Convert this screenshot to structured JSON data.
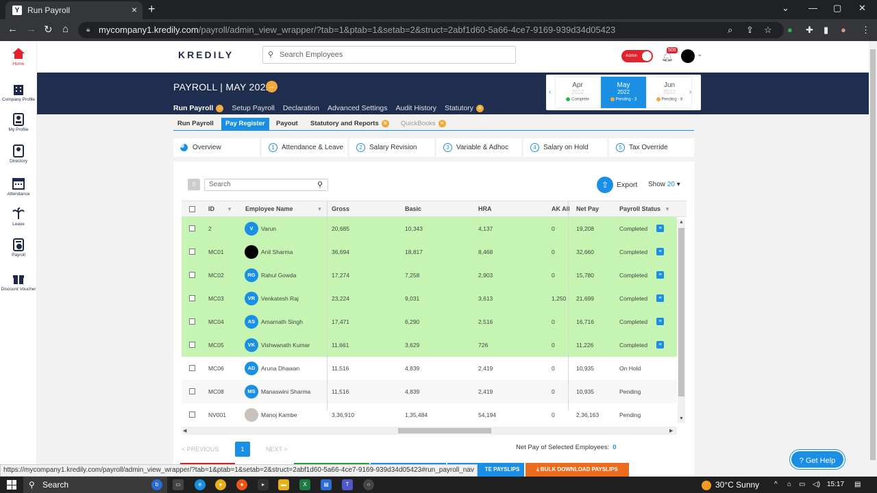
{
  "browser": {
    "tab_title": "Run Payroll",
    "url_host": "mycompany1.kredily.com",
    "url_path": "/payroll/admin_view_wrapper/?tab=1&ptab=1&setab=2&struct=2abf1d60-5a66-4ce7-9169-939d34d05423",
    "status_url": "https://mycompany1.kredily.com/payroll/admin_view_wrapper/?tab=1&ptab=1&setab=2&struct=2abf1d60-5a66-4ce7-9169-939d34d05423#run_payroll_nav"
  },
  "header": {
    "logo": "KREDILY",
    "search_placeholder": "Search Employees",
    "admin_label": "Admin",
    "notif_count": "506"
  },
  "sidebar": {
    "items": [
      {
        "label": "Home",
        "icon": "home-icon"
      },
      {
        "label": "Company Profile",
        "icon": "building-icon"
      },
      {
        "label": "My Profile",
        "icon": "profile-icon"
      },
      {
        "label": "Directory",
        "icon": "directory-icon"
      },
      {
        "label": "Attendance",
        "icon": "calendar-icon"
      },
      {
        "label": "Leave",
        "icon": "palm-tree-icon"
      },
      {
        "label": "Payroll",
        "icon": "payroll-icon"
      },
      {
        "label": "Discount Voucher",
        "icon": "gift-icon"
      }
    ]
  },
  "banner": {
    "title": "PAYROLL | MAY 2022",
    "tabs": [
      "Run Payroll",
      "Setup Payroll",
      "Declaration",
      "Advanced Settings",
      "Audit History",
      "Statutory"
    ]
  },
  "months": [
    {
      "name": "Apr",
      "year": "2022",
      "status": "Complete",
      "dot": "#2db84d"
    },
    {
      "name": "May",
      "year": "2022",
      "status": "Pending - 3",
      "dot": "#f2a93b"
    },
    {
      "name": "Jun",
      "year": "2022",
      "status": "Pending - 8",
      "dot": "#f2a93b"
    }
  ],
  "subtabs": [
    "Run Payroll",
    "Pay Register",
    "Payout",
    "Statutory and Reports",
    "QuickBooks"
  ],
  "steps": [
    {
      "num": "",
      "label": "Overview"
    },
    {
      "num": "1",
      "label": "Attendance & Leave"
    },
    {
      "num": "2",
      "label": "Salary Revision"
    },
    {
      "num": "3",
      "label": "Variable & Adhoc"
    },
    {
      "num": "4",
      "label": "Salary on Hold"
    },
    {
      "num": "5",
      "label": "Tax Override"
    }
  ],
  "toolbar": {
    "selected_count": "0",
    "search_placeholder": "Search",
    "export_label": "Export",
    "show_label": "Show",
    "show_value": "20"
  },
  "table": {
    "columns": [
      "ID",
      "Employee Name",
      "Gross",
      "Basic",
      "HRA",
      "AK Allo",
      "Net Pay",
      "Payroll Status"
    ],
    "rows": [
      {
        "id": "2",
        "initials": "V",
        "name": "Varun",
        "gross": "20,685",
        "basic": "10,343",
        "hra": "4,137",
        "ak": "0",
        "net": "19,208",
        "status": "Completed"
      },
      {
        "id": "MC01",
        "initials": "",
        "name": "Anil Sharma",
        "gross": "36,694",
        "basic": "18,817",
        "hra": "8,468",
        "ak": "0",
        "net": "32,660",
        "status": "Completed"
      },
      {
        "id": "MC02",
        "initials": "RG",
        "name": "Rahul Gowda",
        "gross": "17,274",
        "basic": "7,258",
        "hra": "2,903",
        "ak": "0",
        "net": "15,780",
        "status": "Completed"
      },
      {
        "id": "MC03",
        "initials": "VR",
        "name": "Venkatesh Raj",
        "gross": "23,224",
        "basic": "9,031",
        "hra": "3,613",
        "ak": "1,250",
        "net": "21,699",
        "status": "Completed"
      },
      {
        "id": "MC04",
        "initials": "AS",
        "name": "Amarnath Singh",
        "gross": "17,471",
        "basic": "6,290",
        "hra": "2,516",
        "ak": "0",
        "net": "16,716",
        "status": "Completed"
      },
      {
        "id": "MC05",
        "initials": "VK",
        "name": "Vishwanath Kumar",
        "gross": "11,661",
        "basic": "3,629",
        "hra": "726",
        "ak": "0",
        "net": "11,226",
        "status": "Completed"
      },
      {
        "id": "MC06",
        "initials": "AD",
        "name": "Aruna Dhawan",
        "gross": "11,516",
        "basic": "4,839",
        "hra": "2,419",
        "ak": "0",
        "net": "10,935",
        "status": "On Hold"
      },
      {
        "id": "MC08",
        "initials": "MS",
        "name": "Manaswini Sharma",
        "gross": "11,516",
        "basic": "4,839",
        "hra": "2,419",
        "ak": "0",
        "net": "10,935",
        "status": "Pending"
      },
      {
        "id": "NV001",
        "initials": "",
        "name": "Manoj Kambe",
        "gross": "3,36,910",
        "basic": "1,35,484",
        "hra": "54,194",
        "ak": "0",
        "net": "2,36,163",
        "status": "Pending"
      }
    ]
  },
  "pager": {
    "prev": "<  PREVIOUS",
    "page": "1",
    "next": "NEXT  >",
    "net_pay_label": "Net Pay of Selected Employees:",
    "net_pay_value": "0"
  },
  "bottom_buttons": [
    "TE PAYSLIPS",
    "BULK DOWNLOAD PAYSLIPS"
  ],
  "help_label": "Get Help",
  "taskbar": {
    "search_label": "Search",
    "weather": "30°C  Sunny",
    "time": "15:17"
  }
}
